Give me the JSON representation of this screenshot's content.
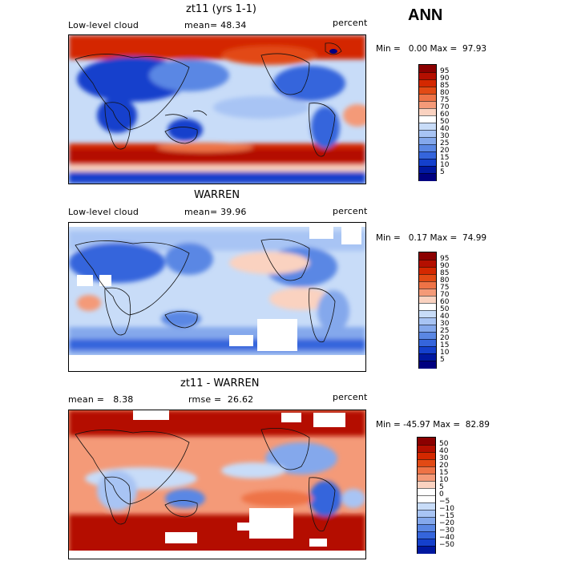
{
  "season_label": "ANN",
  "panels": [
    {
      "title": "zt11 (yrs 1-1)",
      "left_label": "Low-level cloud",
      "mid_label": "mean=  48.34",
      "right_label": "percent",
      "minmax": "Min =   0.00 Max =  97.93",
      "colorbar_labels": [
        "95",
        "90",
        "85",
        "80",
        "75",
        "70",
        "60",
        "50",
        "40",
        "30",
        "25",
        "20",
        "15",
        "10",
        "5"
      ]
    },
    {
      "title": "WARREN",
      "left_label": "Low-level cloud",
      "mid_label": "mean=  39.96",
      "right_label": "percent",
      "minmax": "Min =   0.17 Max =  74.99",
      "colorbar_labels": [
        "95",
        "90",
        "85",
        "80",
        "75",
        "70",
        "60",
        "50",
        "40",
        "30",
        "25",
        "20",
        "15",
        "10",
        "5"
      ]
    },
    {
      "title": "zt11 - WARREN",
      "left_label": "mean =   8.38",
      "mid_label": "rmse =  26.62",
      "right_label": "percent",
      "minmax": "Min = -45.97 Max =  82.89",
      "colorbar_labels": [
        "50",
        "40",
        "30",
        "20",
        "15",
        "10",
        "5",
        "0",
        "−5",
        "−10",
        "−15",
        "−20",
        "−30",
        "−40",
        "−50"
      ]
    }
  ],
  "colors": {
    "abs_scale": [
      "#8b0000",
      "#b40f00",
      "#d42800",
      "#e24a14",
      "#ee7346",
      "#f49a78",
      "#fad2c0",
      "#ffffff",
      "#c8dcf8",
      "#a8c4f4",
      "#84a8ec",
      "#5a87e4",
      "#3565dc",
      "#1440cc",
      "#0018a0",
      "#000080"
    ],
    "diff_scale": [
      "#8b0000",
      "#b40f00",
      "#d42800",
      "#e24a14",
      "#ee7346",
      "#f49a78",
      "#fad2c0",
      "#ffffff",
      "#ffffff",
      "#c8dcf8",
      "#a8c4f4",
      "#84a8ec",
      "#5a87e4",
      "#3565dc",
      "#1440cc",
      "#0018a0"
    ]
  }
}
